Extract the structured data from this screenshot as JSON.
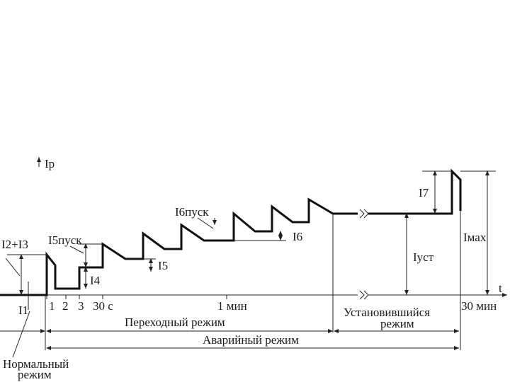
{
  "diagram": {
    "labels": {
      "ip": "Iр",
      "i1": "I1",
      "i2i3": "I2+I3",
      "i4": "I4",
      "i5": "I5",
      "i5_start": "I5пуск",
      "i6": "I6",
      "i6_start": "I6пуск",
      "i7": "I7",
      "iust": "Iуст",
      "imax": "Iмах",
      "t": "t"
    },
    "ticks": {
      "t1": "1",
      "t2": "2",
      "t3": "3",
      "t30s": "30 с",
      "t1min": "1 мин",
      "t30min": "30 мин"
    },
    "modes": {
      "transient": "Переходный режим",
      "steady_line1": "Установившийся",
      "steady_line2": "режим",
      "emergency": "Аварийный режим",
      "normal_line1": "Нормальный",
      "normal_line2": "режим"
    },
    "colors": {
      "line": "#111111",
      "background": "#ffffff"
    }
  }
}
